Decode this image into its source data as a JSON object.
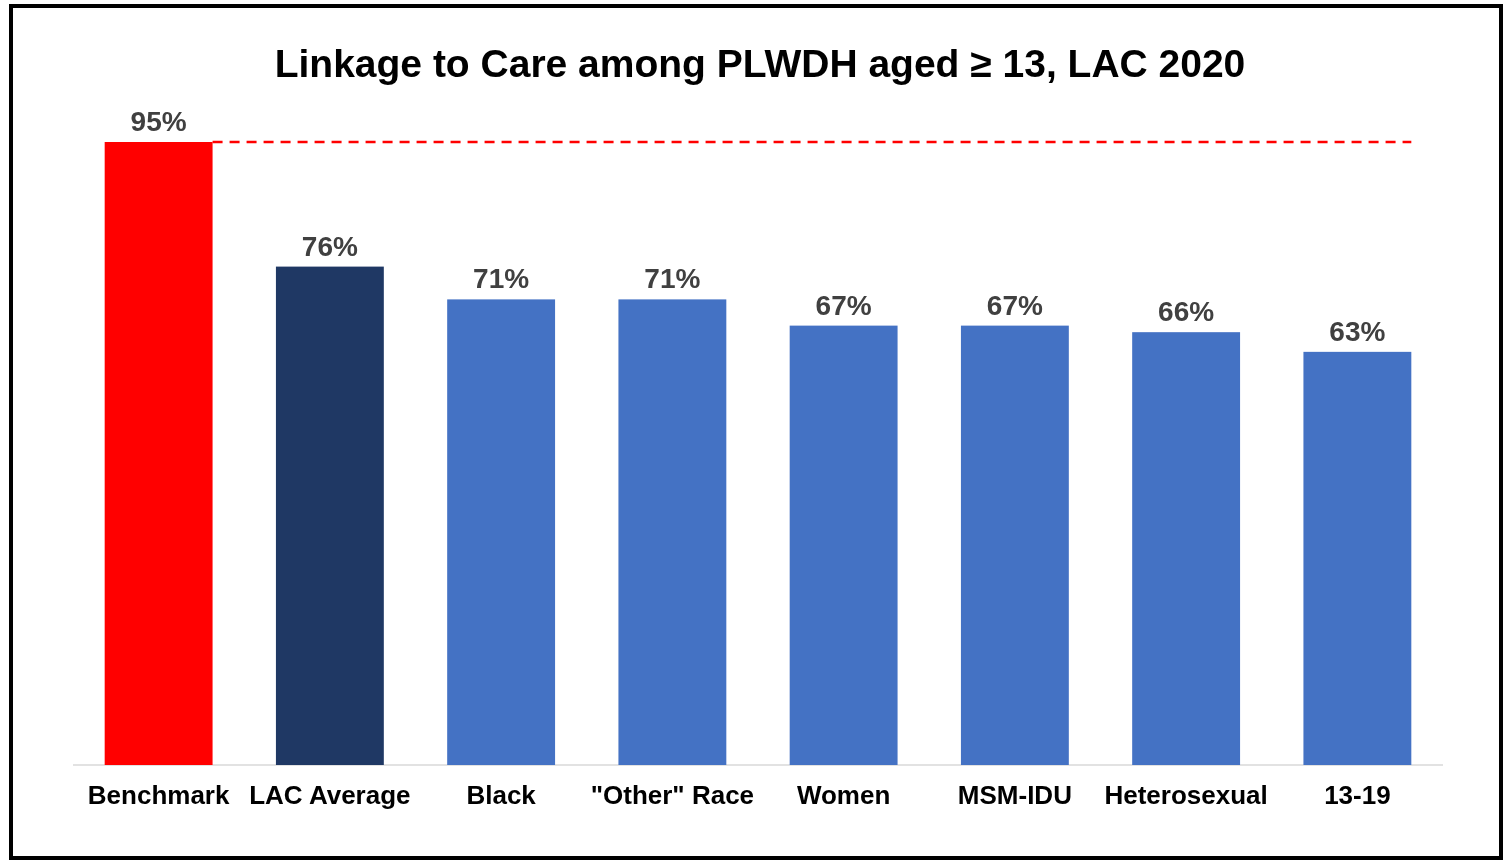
{
  "chart_data": {
    "type": "bar",
    "title": "Linkage to Care among PLWDH aged ≥ 13, LAC 2020",
    "categories": [
      "Benchmark",
      "LAC Average",
      "Black",
      "\"Other\" Race",
      "Women",
      "MSM-IDU",
      "Heterosexual",
      "13-19"
    ],
    "values": [
      95,
      76,
      71,
      71,
      67,
      67,
      66,
      63
    ],
    "colors": [
      "#ff0000",
      "#1f3864",
      "#4472c4",
      "#4472c4",
      "#4472c4",
      "#4472c4",
      "#4472c4",
      "#4472c4"
    ],
    "value_labels": [
      "95%",
      "76%",
      "71%",
      "71%",
      "67%",
      "67%",
      "66%",
      "63%"
    ],
    "ref_lines": [
      {
        "axis": "y",
        "value": 95,
        "color": "#ff0000",
        "line_style": "dashed"
      }
    ]
  }
}
